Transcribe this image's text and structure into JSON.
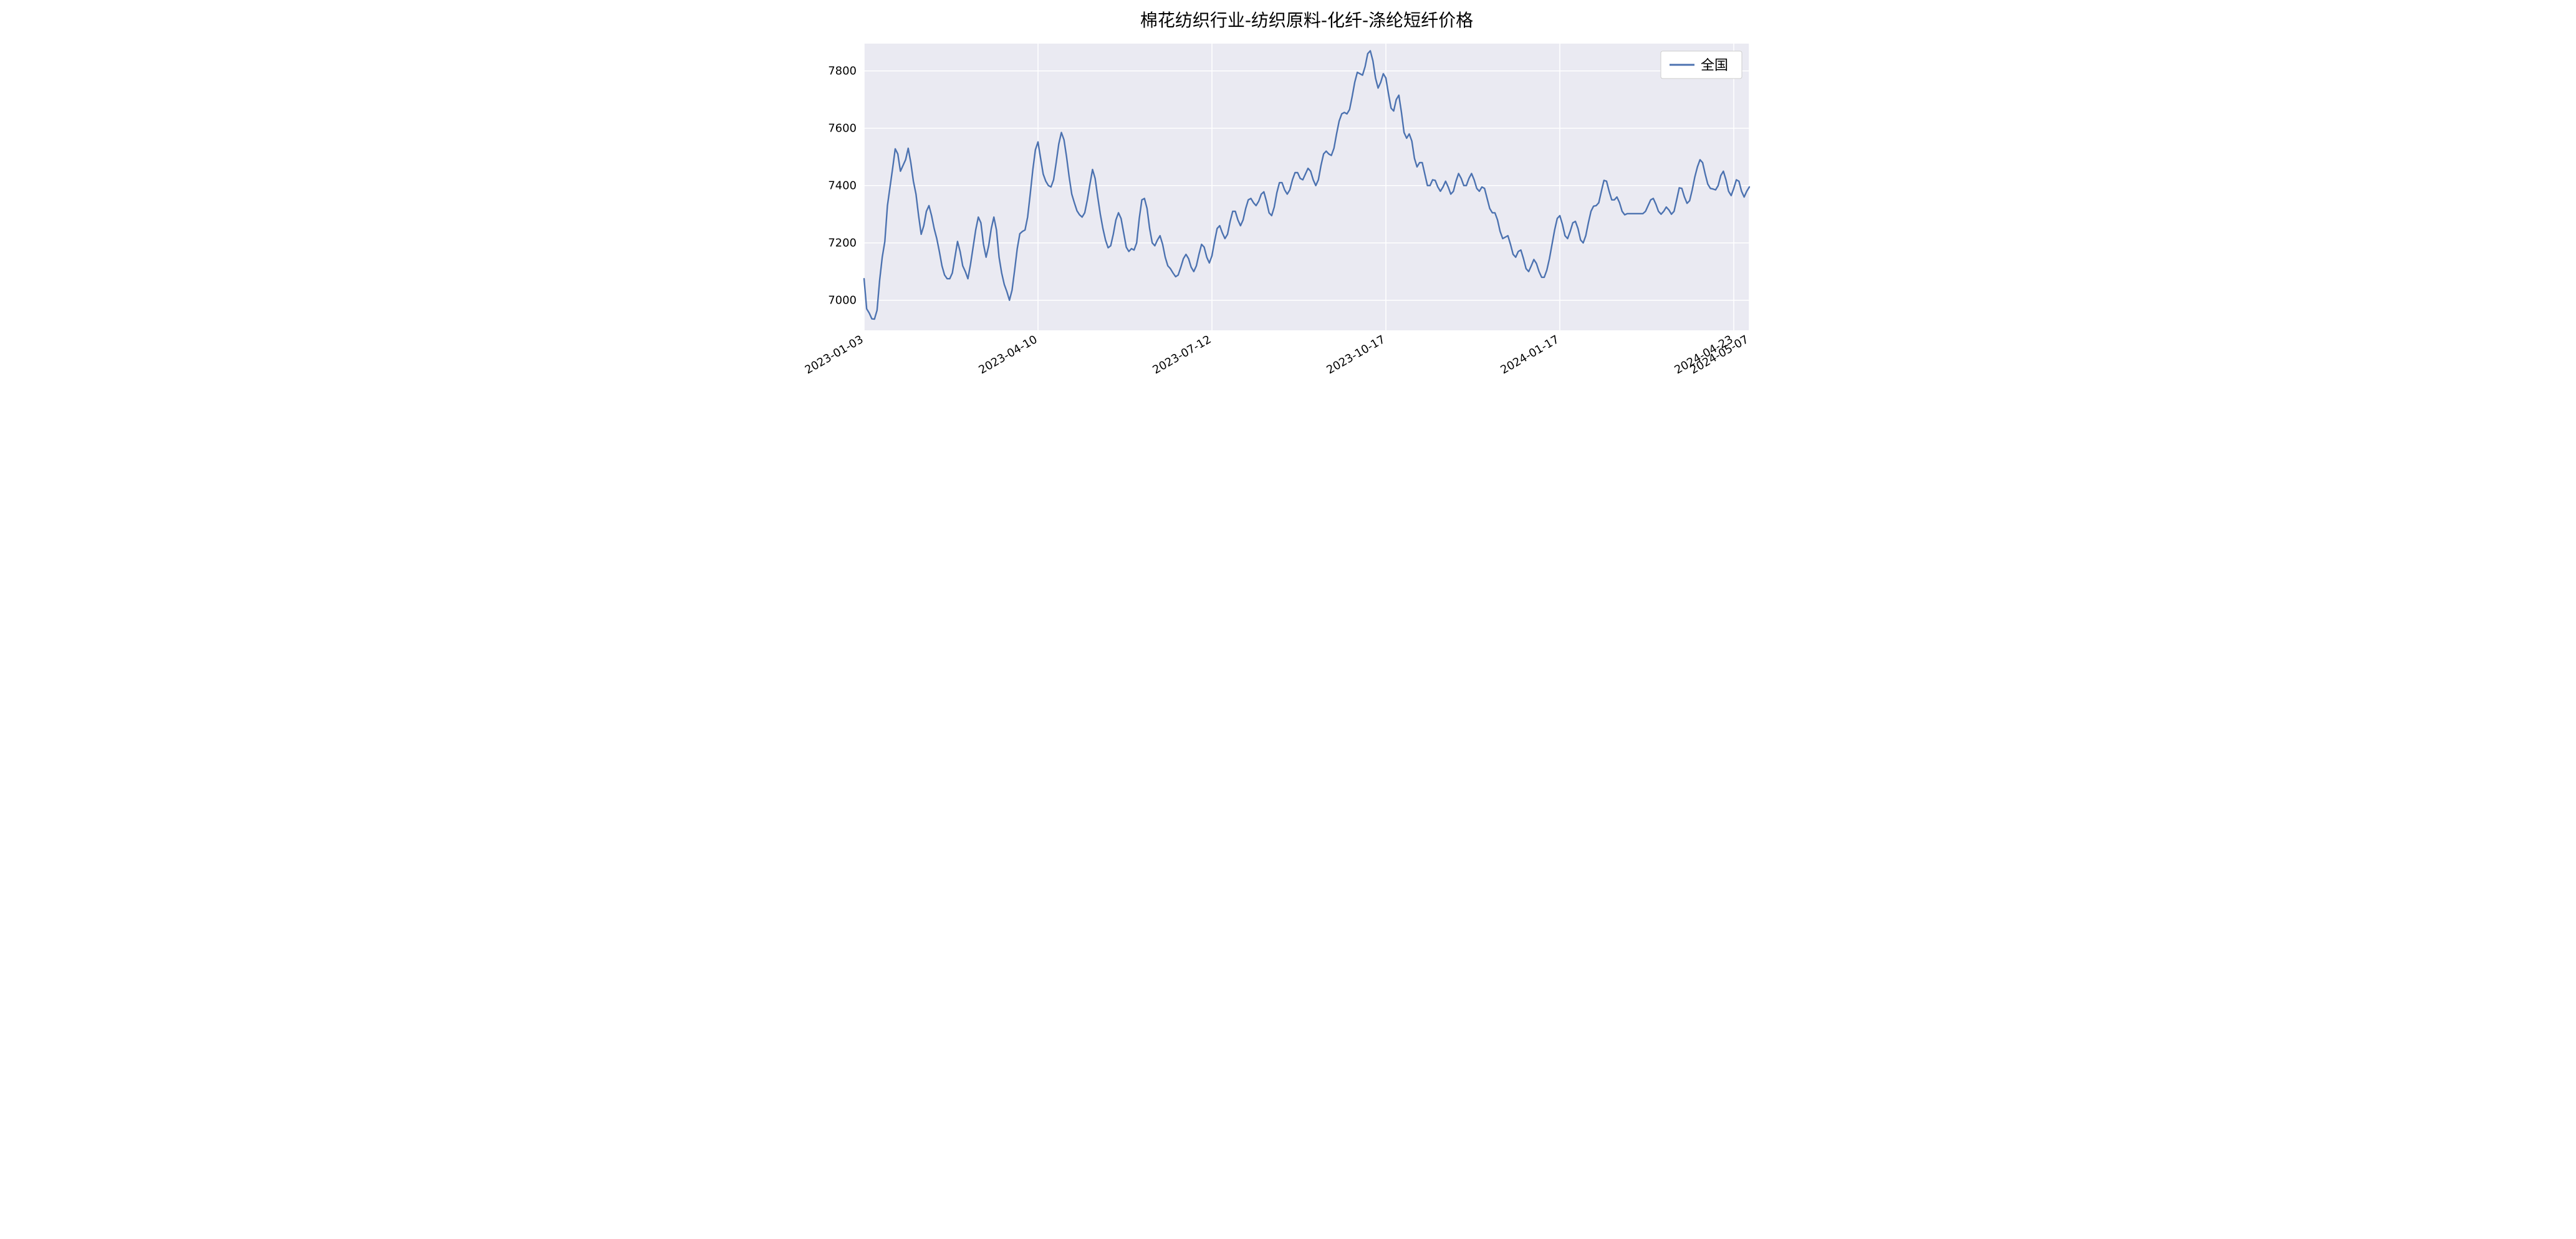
{
  "chart": {
    "type": "line",
    "title": "棉花纺织行业-纺织原料-化纤-涤纶短纤价格",
    "title_fontsize": 28,
    "title_color": "#000000",
    "background_color": "#ffffff",
    "plot_background_color": "#eaeaf2",
    "grid_color": "#ffffff",
    "grid_linewidth": 1.5,
    "tick_label_fontsize": 18,
    "tick_label_color": "#000000",
    "series_color": "#4c72b0",
    "series_linewidth": 2.4,
    "legend": {
      "label": "全国",
      "position": "upper-right",
      "fontsize": 22,
      "bg": "#ffffff",
      "border": "#cccccc"
    },
    "ylim": [
      6895,
      7895
    ],
    "yticks": [
      7000,
      7200,
      7400,
      7600,
      7800
    ],
    "xlim_index": [
      0,
      341
    ],
    "xtick_indices": [
      0,
      67,
      134,
      201,
      268,
      335,
      341
    ],
    "xtick_labels": [
      "2023-01-03",
      "2023-04-10",
      "2023-07-12",
      "2023-10-17",
      "2024-01-17",
      "2024-04-23",
      "2024-05-07"
    ],
    "xtick_rotation": 30,
    "values": [
      7075,
      6970,
      6955,
      6935,
      6934,
      6965,
      7070,
      7150,
      7205,
      7330,
      7395,
      7460,
      7528,
      7510,
      7450,
      7470,
      7490,
      7530,
      7480,
      7415,
      7370,
      7295,
      7230,
      7260,
      7310,
      7330,
      7295,
      7250,
      7215,
      7170,
      7120,
      7088,
      7075,
      7075,
      7095,
      7150,
      7205,
      7170,
      7120,
      7100,
      7075,
      7125,
      7185,
      7245,
      7290,
      7270,
      7195,
      7150,
      7190,
      7250,
      7290,
      7245,
      7150,
      7095,
      7055,
      7030,
      7000,
      7035,
      7105,
      7180,
      7232,
      7240,
      7245,
      7290,
      7370,
      7455,
      7525,
      7552,
      7495,
      7440,
      7415,
      7400,
      7395,
      7420,
      7480,
      7545,
      7585,
      7560,
      7500,
      7430,
      7370,
      7340,
      7312,
      7298,
      7290,
      7305,
      7350,
      7405,
      7456,
      7425,
      7360,
      7300,
      7250,
      7210,
      7183,
      7190,
      7230,
      7280,
      7305,
      7285,
      7235,
      7185,
      7170,
      7180,
      7175,
      7200,
      7285,
      7350,
      7355,
      7320,
      7250,
      7200,
      7190,
      7210,
      7225,
      7195,
      7150,
      7120,
      7110,
      7095,
      7082,
      7088,
      7115,
      7145,
      7160,
      7145,
      7115,
      7100,
      7120,
      7160,
      7195,
      7185,
      7150,
      7130,
      7155,
      7205,
      7250,
      7260,
      7235,
      7215,
      7230,
      7275,
      7310,
      7310,
      7280,
      7260,
      7280,
      7320,
      7350,
      7355,
      7340,
      7330,
      7345,
      7370,
      7378,
      7345,
      7305,
      7295,
      7325,
      7375,
      7410,
      7410,
      7385,
      7370,
      7385,
      7420,
      7445,
      7445,
      7425,
      7420,
      7440,
      7460,
      7450,
      7420,
      7400,
      7420,
      7470,
      7510,
      7520,
      7510,
      7505,
      7530,
      7580,
      7625,
      7650,
      7655,
      7650,
      7665,
      7710,
      7760,
      7795,
      7790,
      7785,
      7815,
      7860,
      7870,
      7835,
      7775,
      7740,
      7760,
      7790,
      7775,
      7720,
      7670,
      7660,
      7700,
      7715,
      7655,
      7585,
      7565,
      7580,
      7555,
      7495,
      7465,
      7480,
      7480,
      7440,
      7400,
      7400,
      7420,
      7418,
      7395,
      7380,
      7395,
      7415,
      7395,
      7370,
      7380,
      7415,
      7442,
      7425,
      7400,
      7400,
      7425,
      7442,
      7420,
      7390,
      7380,
      7395,
      7390,
      7355,
      7320,
      7305,
      7305,
      7280,
      7240,
      7215,
      7220,
      7225,
      7195,
      7160,
      7150,
      7170,
      7175,
      7145,
      7110,
      7100,
      7120,
      7142,
      7128,
      7100,
      7080,
      7080,
      7105,
      7145,
      7195,
      7245,
      7285,
      7295,
      7265,
      7225,
      7215,
      7240,
      7270,
      7275,
      7250,
      7210,
      7200,
      7225,
      7270,
      7310,
      7328,
      7330,
      7340,
      7380,
      7418,
      7415,
      7380,
      7350,
      7350,
      7360,
      7340,
      7310,
      7298,
      7302,
      7302,
      7302,
      7302,
      7302,
      7302,
      7302,
      7310,
      7330,
      7350,
      7355,
      7335,
      7310,
      7300,
      7310,
      7325,
      7315,
      7300,
      7310,
      7350,
      7392,
      7390,
      7360,
      7338,
      7347,
      7385,
      7430,
      7465,
      7490,
      7480,
      7440,
      7405,
      7390,
      7388,
      7385,
      7400,
      7435,
      7450,
      7420,
      7380,
      7365,
      7390,
      7420,
      7415,
      7380,
      7360,
      7380,
      7395
    ]
  }
}
